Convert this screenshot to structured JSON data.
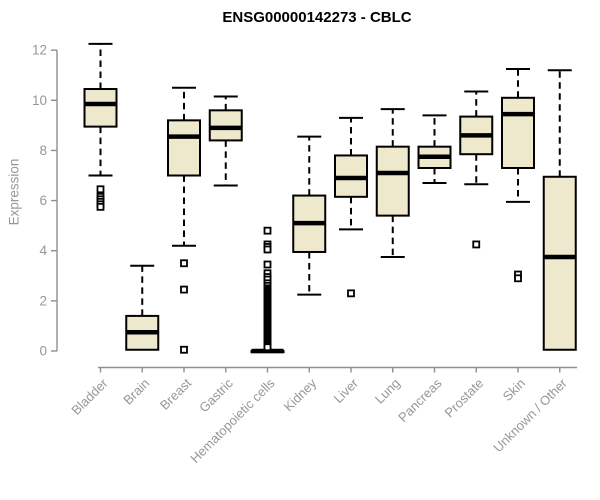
{
  "chart_data": {
    "type": "boxplot",
    "title": "ENSG00000142273 - CBLC",
    "ylabel": "Expression",
    "xlabel": "",
    "ylim": [
      0,
      12
    ],
    "yticks": [
      0,
      2,
      4,
      6,
      8,
      10,
      12
    ],
    "grid": false,
    "legend": "none",
    "colors": {
      "box_fill": "#EEE8CD",
      "box_stroke": "#000000",
      "median": "#000000",
      "axis_line": "#8f8f8f",
      "axis_text": "#979797",
      "title_text": "#000000",
      "outlier_fill": "#ffffff"
    },
    "categories": [
      "Bladder",
      "Brain",
      "Breast",
      "Gastric",
      "Hematopoietic cells",
      "Kidney",
      "Liver",
      "Lung",
      "Pancreas",
      "Prostate",
      "Skin",
      "Unknown / Other"
    ],
    "series": [
      {
        "category": "Bladder",
        "whisker_low": 7.0,
        "q1": 8.95,
        "median": 9.85,
        "q3": 10.45,
        "whisker_high": 12.25,
        "outliers": [
          6.45,
          6.15,
          6.05,
          5.95,
          5.85,
          5.75
        ]
      },
      {
        "category": "Brain",
        "whisker_low": 0.05,
        "q1": 0.05,
        "median": 0.75,
        "q3": 1.4,
        "whisker_high": 3.4,
        "outliers": []
      },
      {
        "category": "Breast",
        "whisker_low": 4.2,
        "q1": 7.0,
        "median": 8.55,
        "q3": 9.2,
        "whisker_high": 10.5,
        "outliers": [
          3.5,
          2.45,
          0.05
        ]
      },
      {
        "category": "Gastric",
        "whisker_low": 6.6,
        "q1": 8.4,
        "median": 8.9,
        "q3": 9.6,
        "whisker_high": 10.15,
        "outliers": []
      },
      {
        "category": "Hematopoietic cells",
        "whisker_low": 0,
        "q1": 0,
        "median": 0,
        "q3": 0,
        "whisker_high": 0,
        "outliers": [
          4.8,
          4.25,
          4.15,
          4.05,
          3.45,
          3.1,
          2.95,
          2.85,
          2.7,
          2.6,
          2.5,
          2.45,
          2.4,
          2.35,
          2.3,
          2.25,
          2.2,
          2.15,
          2.1,
          2.05,
          2.0,
          1.95,
          1.9,
          1.85,
          1.8,
          1.75,
          1.7,
          1.65,
          1.6,
          1.55,
          1.5,
          1.45,
          1.4,
          1.35,
          1.3,
          1.25,
          1.2,
          1.15,
          1.1,
          1.05,
          1.0,
          0.95,
          0.9,
          0.85,
          0.8,
          0.75,
          0.7,
          0.65,
          0.6,
          0.55,
          0.5,
          0.45,
          0.4,
          0.35,
          0.3,
          0.25,
          0.2,
          0.15
        ]
      },
      {
        "category": "Kidney",
        "whisker_low": 2.25,
        "q1": 3.95,
        "median": 5.1,
        "q3": 6.2,
        "whisker_high": 8.55,
        "outliers": []
      },
      {
        "category": "Liver",
        "whisker_low": 4.85,
        "q1": 6.15,
        "median": 6.9,
        "q3": 7.8,
        "whisker_high": 9.3,
        "outliers": [
          2.3
        ]
      },
      {
        "category": "Lung",
        "whisker_low": 3.75,
        "q1": 5.4,
        "median": 7.1,
        "q3": 8.15,
        "whisker_high": 9.65,
        "outliers": []
      },
      {
        "category": "Pancreas",
        "whisker_low": 6.7,
        "q1": 7.3,
        "median": 7.75,
        "q3": 8.15,
        "whisker_high": 9.4,
        "outliers": []
      },
      {
        "category": "Prostate",
        "whisker_low": 6.65,
        "q1": 7.85,
        "median": 8.6,
        "q3": 9.35,
        "whisker_high": 10.35,
        "outliers": [
          4.25
        ]
      },
      {
        "category": "Skin",
        "whisker_low": 5.95,
        "q1": 7.3,
        "median": 9.45,
        "q3": 10.1,
        "whisker_high": 11.25,
        "outliers": [
          3.05,
          2.9
        ]
      },
      {
        "category": "Unknown / Other",
        "whisker_low": 0.05,
        "q1": 0.05,
        "median": 3.75,
        "q3": 6.95,
        "whisker_high": 11.2,
        "outliers": []
      }
    ]
  }
}
